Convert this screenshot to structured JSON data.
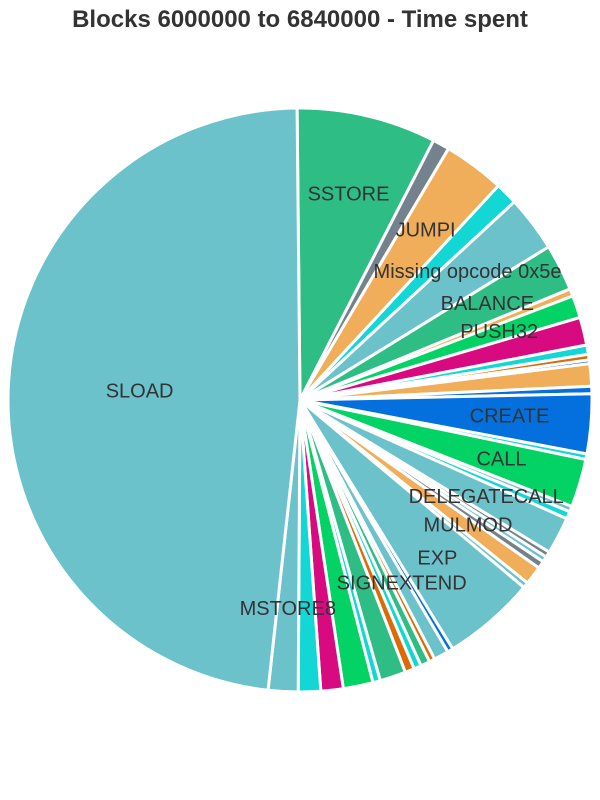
{
  "chart_data": {
    "type": "pie",
    "title": "Blocks 6000000 to 6840000 - Time spent",
    "palette": [
      "#6cc2cb",
      "#2ebd85",
      "#73828c",
      "#f0ad5a",
      "#12d7d4",
      "#d80a7f",
      "#02d364",
      "#0470de",
      "#dd6907"
    ],
    "slices": [
      {
        "label": "SSTORE",
        "value": 7.5
      },
      {
        "label": "",
        "value": 0.9
      },
      {
        "label": "JUMPI",
        "value": 3.3
      },
      {
        "label": "",
        "value": 1.2
      },
      {
        "label": "Missing opcode 0x5e",
        "value": 3.0
      },
      {
        "label": "BALANCE",
        "value": 2.5
      },
      {
        "label": "",
        "value": 0.4
      },
      {
        "label": "PUSH32",
        "value": 1.2
      },
      {
        "label": "",
        "value": 1.5
      },
      {
        "label": "",
        "value": 0.5
      },
      {
        "label": "",
        "value": 0.3
      },
      {
        "label": "",
        "value": 0.2
      },
      {
        "label": "",
        "value": 1.2
      },
      {
        "label": "",
        "value": 0.4
      },
      {
        "label": "CREATE",
        "value": 3.2
      },
      {
        "label": "",
        "value": 0.3
      },
      {
        "label": "CALL",
        "value": 2.6
      },
      {
        "label": "",
        "value": 0.3
      },
      {
        "label": "",
        "value": 0.4
      },
      {
        "label": "DELEGATECALL",
        "value": 2.0
      },
      {
        "label": "",
        "value": 0.3
      },
      {
        "label": "",
        "value": 0.3
      },
      {
        "label": "",
        "value": 0.4
      },
      {
        "label": "MULMOD",
        "value": 1.0
      },
      {
        "label": "",
        "value": 0.3
      },
      {
        "label": "EXP",
        "value": 5.0
      },
      {
        "label": "",
        "value": 0.3
      },
      {
        "label": "SIGNEXTEND",
        "value": 0.8
      },
      {
        "label": "",
        "value": 0.3
      },
      {
        "label": "",
        "value": 0.5
      },
      {
        "label": "",
        "value": 0.4
      },
      {
        "label": "",
        "value": 0.5
      },
      {
        "label": "",
        "value": 1.4
      },
      {
        "label": "",
        "value": 0.4
      },
      {
        "label": "",
        "value": 1.6
      },
      {
        "label": "",
        "value": 1.2
      },
      {
        "label": "",
        "value": 1.2
      },
      {
        "label": "MSTORE8",
        "value": 1.6
      },
      {
        "label": "SLOAD",
        "value": 46.7
      }
    ]
  }
}
